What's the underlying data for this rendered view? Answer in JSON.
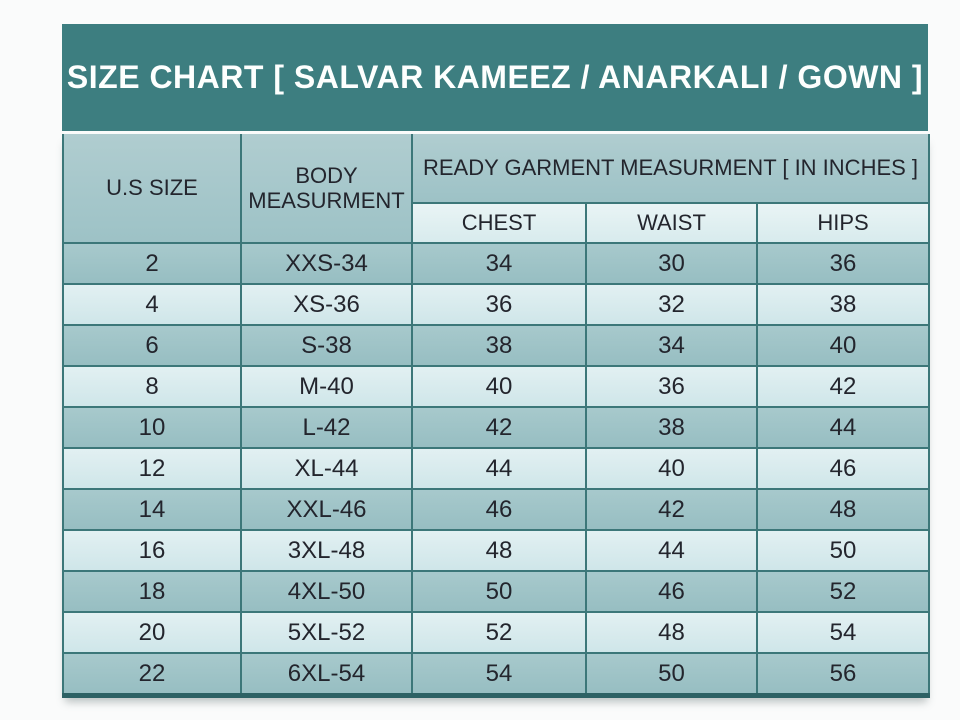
{
  "title": "SIZE CHART [ SALVAR KAMEEZ / ANARKALI / GOWN ]",
  "colors": {
    "title_band_bg": "#3d7e80",
    "title_text": "#fdfffe",
    "header_dark_bg": "#9dc2c6",
    "subheader_light_bg": "#d8ebed",
    "row_dark_bg": "#9dc2c6",
    "row_light_bg": "#d5e9ec",
    "grid_border": "#3c7779",
    "bottom_border": "#2d6164",
    "cell_text": "#23252d",
    "page_bg": "#fafbfb"
  },
  "chart_data": {
    "type": "table",
    "title": "SIZE CHART [ SALVAR KAMEEZ / ANARKALI / GOWN ]",
    "headers": {
      "us_size": "U.S SIZE",
      "body": "BODY MEASURMENT",
      "group": "READY GARMENT MEASURMENT [ IN INCHES ]",
      "sub": [
        "CHEST",
        "WAIST",
        "HIPS"
      ]
    },
    "columns": [
      "U.S SIZE",
      "BODY MEASURMENT",
      "CHEST",
      "WAIST",
      "HIPS"
    ],
    "rows": [
      {
        "us_size": "2",
        "body": "XXS-34",
        "chest": "34",
        "waist": "30",
        "hips": "36"
      },
      {
        "us_size": "4",
        "body": "XS-36",
        "chest": "36",
        "waist": "32",
        "hips": "38"
      },
      {
        "us_size": "6",
        "body": "S-38",
        "chest": "38",
        "waist": "34",
        "hips": "40"
      },
      {
        "us_size": "8",
        "body": "M-40",
        "chest": "40",
        "waist": "36",
        "hips": "42"
      },
      {
        "us_size": "10",
        "body": "L-42",
        "chest": "42",
        "waist": "38",
        "hips": "44"
      },
      {
        "us_size": "12",
        "body": "XL-44",
        "chest": "44",
        "waist": "40",
        "hips": "46"
      },
      {
        "us_size": "14",
        "body": "XXL-46",
        "chest": "46",
        "waist": "42",
        "hips": "48"
      },
      {
        "us_size": "16",
        "body": "3XL-48",
        "chest": "48",
        "waist": "44",
        "hips": "50"
      },
      {
        "us_size": "18",
        "body": "4XL-50",
        "chest": "50",
        "waist": "46",
        "hips": "52"
      },
      {
        "us_size": "20",
        "body": "5XL-52",
        "chest": "52",
        "waist": "48",
        "hips": "54"
      },
      {
        "us_size": "22",
        "body": "6XL-54",
        "chest": "54",
        "waist": "50",
        "hips": "56"
      }
    ]
  }
}
